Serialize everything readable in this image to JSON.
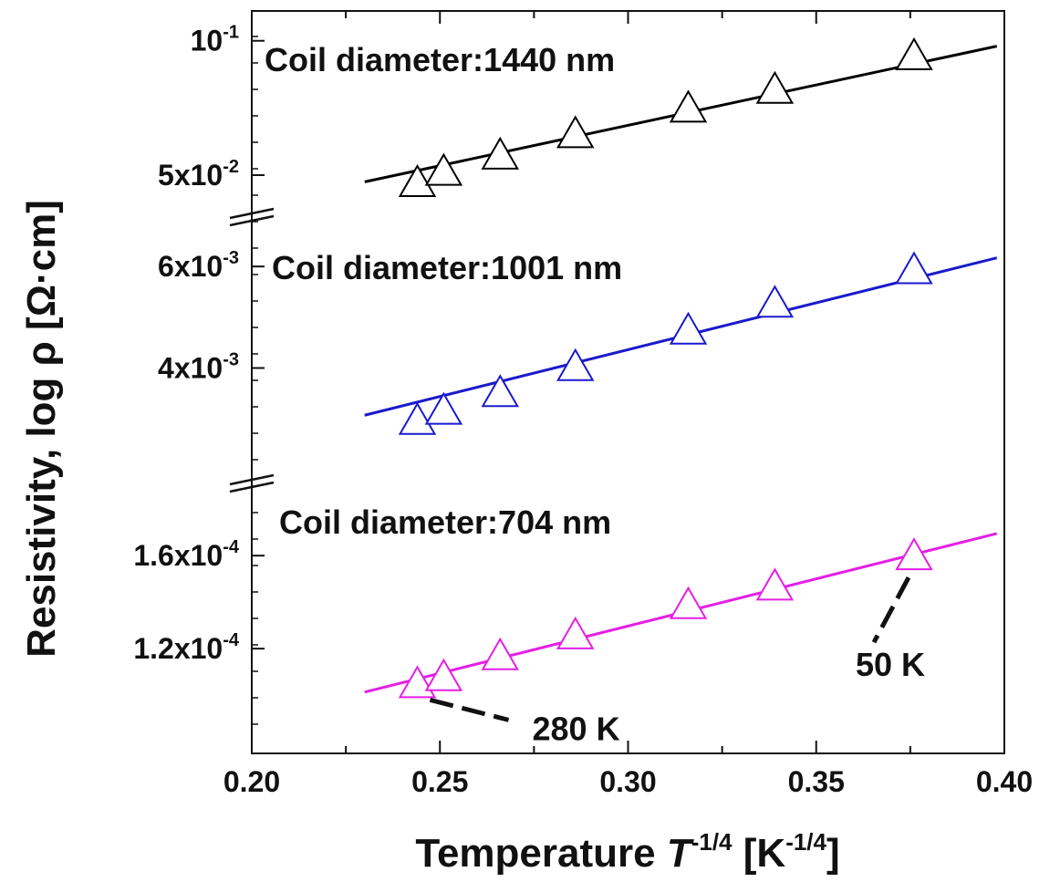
{
  "chart_data": {
    "type": "scatter",
    "xlabel": {
      "text": "Temperature ",
      "sym": "T",
      "sup": "-1/4",
      "unit_open": " [K",
      "unit_sup": "-1/4",
      "unit_close": "]"
    },
    "ylabel": {
      "text": "Resistivity, log ρ [Ω·cm]"
    },
    "xlim": [
      0.2,
      0.4
    ],
    "x_ticks": [
      "0.20",
      "0.25",
      "0.30",
      "0.35",
      "0.40"
    ],
    "x_tick_values": [
      0.2,
      0.25,
      0.3,
      0.35,
      0.4
    ],
    "series": [
      {
        "name": "Coil diameter:1440 nm",
        "color": "#000000",
        "ylim": [
          0.0405,
          0.105
        ],
        "x": [
          0.244,
          0.251,
          0.266,
          0.286,
          0.316,
          0.339,
          0.376
        ],
        "y": [
          0.0473,
          0.0515,
          0.0575,
          0.0655,
          0.075,
          0.082,
          0.0945
        ],
        "fit_x": [
          0.23,
          0.398
        ],
        "fit_y": [
          0.0475,
          0.098
        ],
        "y_ticks": [
          {
            "value": 0.1,
            "base": "10",
            "exp": "-1"
          },
          {
            "value": 0.05,
            "base": "5x10",
            "exp": "-2"
          }
        ]
      },
      {
        "name": "Coil diameter:1001 nm",
        "color": "#1a1acd",
        "ylim": [
          0.00205,
          0.00665
        ],
        "x": [
          0.244,
          0.251,
          0.266,
          0.286,
          0.316,
          0.339,
          0.376
        ],
        "y": [
          0.00297,
          0.00317,
          0.00352,
          0.00403,
          0.00475,
          0.00528,
          0.00594
        ],
        "fit_x": [
          0.23,
          0.398
        ],
        "fit_y": [
          0.00307,
          0.00617
        ],
        "y_ticks": [
          {
            "value": 0.006,
            "base": "6x10",
            "exp": "-3"
          },
          {
            "value": 0.004,
            "base": "4x10",
            "exp": "-3"
          }
        ]
      },
      {
        "name": "Coil diameter:704 nm",
        "color": "#e51ee5",
        "ylim": [
          8.2e-05,
          0.000184
        ],
        "x": [
          0.244,
          0.251,
          0.266,
          0.286,
          0.316,
          0.339,
          0.376
        ],
        "y": [
          0.000105,
          0.000108,
          0.000117,
          0.000126,
          0.000139,
          0.000147,
          0.00016
        ],
        "fit_x": [
          0.23,
          0.398
        ],
        "fit_y": [
          0.0001013,
          0.0001695
        ],
        "y_ticks": [
          {
            "value": 0.00016,
            "base": "1.6x10",
            "exp": "-4"
          },
          {
            "value": 0.00012,
            "base": "1.2x10",
            "exp": "-4"
          }
        ]
      }
    ],
    "annotations": [
      {
        "text": "50 K",
        "x": 0.376,
        "series": 2
      },
      {
        "text": "280 K",
        "x": 0.244,
        "series": 2
      }
    ],
    "grid": false,
    "legend": "none"
  }
}
